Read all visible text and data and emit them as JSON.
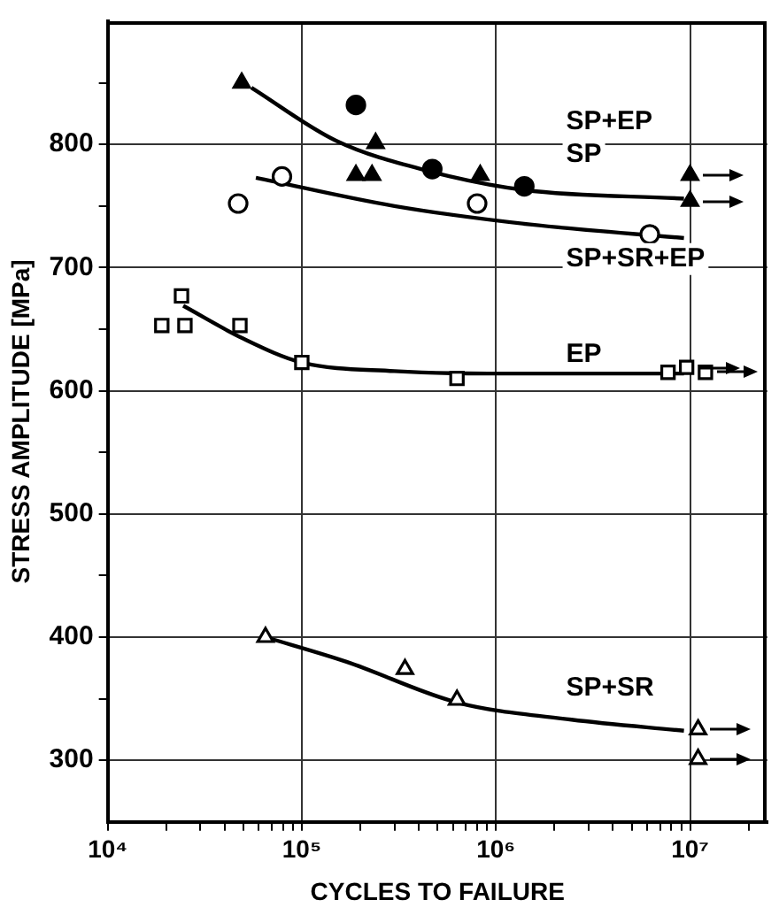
{
  "chart_data": {
    "type": "scatter",
    "xlabel": "CYCLES TO FAILURE",
    "ylabel": "STRESS AMPLITUDE [MPa]",
    "log": "x",
    "grid": true,
    "legend": false,
    "xlim": [
      10000,
      25000000
    ],
    "ylim": [
      250,
      900
    ],
    "xticks": [
      {
        "value": 10000,
        "label": "10⁴"
      },
      {
        "value": 20000,
        "label": null
      },
      {
        "value": 30000,
        "label": null
      },
      {
        "value": 40000,
        "label": null
      },
      {
        "value": 50000,
        "label": null
      },
      {
        "value": 60000,
        "label": null
      },
      {
        "value": 70000,
        "label": null
      },
      {
        "value": 80000,
        "label": null
      },
      {
        "value": 90000,
        "label": null
      },
      {
        "value": 100000,
        "label": "10⁵"
      },
      {
        "value": 200000,
        "label": null
      },
      {
        "value": 300000,
        "label": null
      },
      {
        "value": 400000,
        "label": null
      },
      {
        "value": 500000,
        "label": null
      },
      {
        "value": 600000,
        "label": null
      },
      {
        "value": 700000,
        "label": null
      },
      {
        "value": 800000,
        "label": null
      },
      {
        "value": 900000,
        "label": null
      },
      {
        "value": 1000000,
        "label": "10⁶"
      },
      {
        "value": 2000000,
        "label": null
      },
      {
        "value": 3000000,
        "label": null
      },
      {
        "value": 4000000,
        "label": null
      },
      {
        "value": 5000000,
        "label": null
      },
      {
        "value": 6000000,
        "label": null
      },
      {
        "value": 7000000,
        "label": null
      },
      {
        "value": 8000000,
        "label": null
      },
      {
        "value": 9000000,
        "label": null
      },
      {
        "value": 10000000,
        "label": "10⁷"
      },
      {
        "value": 20000000,
        "label": null
      }
    ],
    "yticks": [
      300,
      {
        "value": 350,
        "label": null
      },
      400,
      {
        "value": 450,
        "label": null
      },
      500,
      {
        "value": 550,
        "label": null
      },
      600,
      {
        "value": 650,
        "label": null
      },
      700,
      {
        "value": 750,
        "label": null
      },
      800,
      {
        "value": 850,
        "label": null
      }
    ],
    "series": [
      {
        "name": "SP+EP",
        "type": "scatter",
        "marker": "triangle",
        "color": "#000000",
        "x": [
          49000,
          240000,
          190000,
          230000,
          830000,
          10000000,
          10000000
        ],
        "values": [
          850,
          801,
          775,
          775,
          775,
          775,
          754
        ]
      },
      {
        "name": "SP",
        "type": "scatter",
        "marker": "circle",
        "color": "#000000",
        "x": [
          190000,
          470000,
          1400000
        ],
        "values": [
          832,
          780,
          766
        ]
      },
      {
        "type": "line",
        "marker": "none",
        "line_style": "solid",
        "color": "#000000",
        "x": [
          55000,
          150000,
          460000,
          1400000,
          9300000
        ],
        "values": [
          846,
          803,
          778,
          763,
          756
        ]
      },
      {
        "name": "SP+SR+EP",
        "type": "scatter",
        "marker": "circle",
        "color": "#000000",
        "x": [
          47000,
          79000,
          800000,
          6200000
        ],
        "values": [
          752,
          774,
          752,
          727
        ]
      },
      {
        "type": "line",
        "marker": "none",
        "line_style": "solid",
        "color": "#000000",
        "x": [
          58000,
          300000,
          1500000,
          9300000
        ],
        "values": [
          773,
          750,
          735,
          724
        ]
      },
      {
        "name": "EP",
        "type": "scatter",
        "marker": "square",
        "color": "#000000",
        "x": [
          24000,
          19000,
          25000,
          48000,
          100000,
          630000,
          7700000,
          9600000,
          12000000
        ],
        "values": [
          677,
          653,
          653,
          653,
          623,
          610,
          615,
          619,
          615
        ]
      },
      {
        "type": "line",
        "marker": "none",
        "line_style": "solid",
        "color": "#000000",
        "x": [
          24500,
          49000,
          100000,
          300000,
          910000,
          9300000
        ],
        "values": [
          669,
          643,
          623,
          616,
          614,
          614
        ]
      },
      {
        "name": "SP+SR",
        "type": "scatter",
        "marker": "triangle",
        "color": "#000000",
        "x": [
          65000,
          340000,
          630000,
          11000000,
          11000000
        ],
        "values": [
          400,
          374,
          349,
          325,
          301
        ]
      },
      {
        "type": "line",
        "marker": "none",
        "line_style": "solid",
        "color": "#000000",
        "x": [
          65000,
          170000,
          630000,
          2450000,
          9300000
        ],
        "values": [
          400,
          380,
          347,
          333,
          324
        ]
      }
    ]
  }
}
